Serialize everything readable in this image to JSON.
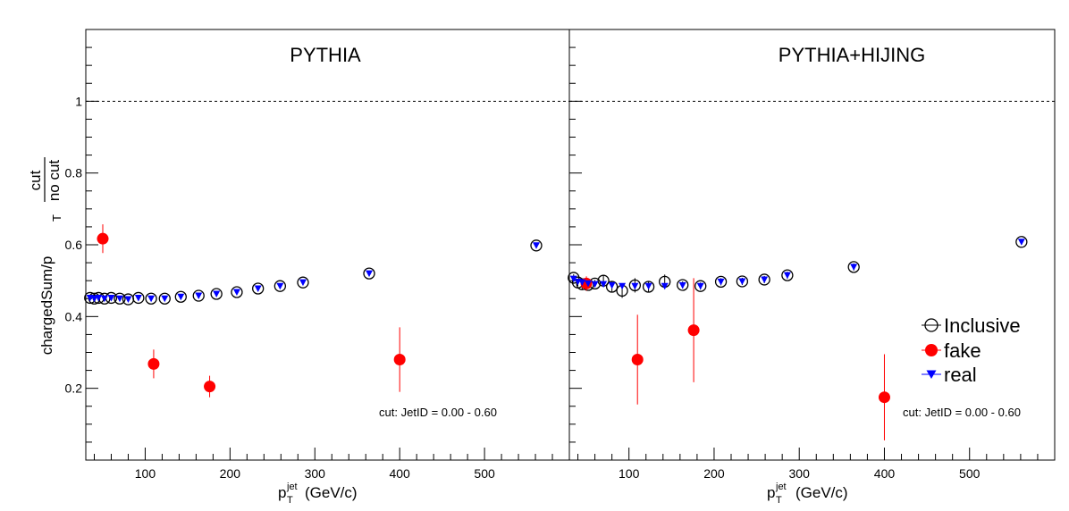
{
  "chart_data": [
    {
      "type": "scatter",
      "title": "PYTHIA",
      "annotation": "cut: JetID = 0.00 - 0.60",
      "xlabel": {
        "main": "p",
        "sub": "T",
        "sup": "jet",
        "unit": "(GeV/c)"
      },
      "ylabel": {
        "main": "chargedSum/p",
        "sub": "T",
        "frac_num": "cut",
        "frac_den": "no cut"
      },
      "xlim": [
        30,
        600
      ],
      "ylim": [
        0.0,
        1.2
      ],
      "x_ticks": [
        100,
        200,
        300,
        400,
        500
      ],
      "y_ticks": [
        0.2,
        0.4,
        0.6,
        0.8,
        1.0
      ],
      "y_tick_labels": [
        "0.2",
        "0.4",
        "0.6",
        "0.8",
        "1"
      ],
      "reference_line": 1.0,
      "series": [
        {
          "name": "Inclusive",
          "marker": "open-circle",
          "color": "#000000",
          "points": [
            [
              35,
              0.452
            ],
            [
              40,
              0.45
            ],
            [
              45,
              0.452
            ],
            [
              52,
              0.45
            ],
            [
              60,
              0.452
            ],
            [
              70,
              0.45
            ],
            [
              80,
              0.448
            ],
            [
              92,
              0.452
            ],
            [
              107,
              0.45
            ],
            [
              123,
              0.45
            ],
            [
              142,
              0.455
            ],
            [
              163,
              0.458
            ],
            [
              184,
              0.463
            ],
            [
              208,
              0.468
            ],
            [
              233,
              0.478
            ],
            [
              259,
              0.485
            ],
            [
              286,
              0.495
            ],
            [
              364,
              0.52
            ],
            [
              561,
              0.598
            ]
          ],
          "errors": [
            0,
            0,
            0,
            0,
            0,
            0,
            0,
            0,
            0,
            0,
            0,
            0,
            0,
            0,
            0,
            0,
            0,
            0,
            0
          ]
        },
        {
          "name": "fake",
          "marker": "filled-circle",
          "color": "#ff0000",
          "points": [
            [
              50,
              0.617
            ],
            [
              110,
              0.268
            ],
            [
              176,
              0.205
            ],
            [
              400,
              0.28
            ]
          ],
          "errors": [
            0.04,
            0.04,
            0.03,
            0.09
          ]
        },
        {
          "name": "real",
          "marker": "down-triangle",
          "color": "#0000ff",
          "points": [
            [
              35,
              0.452
            ],
            [
              40,
              0.45
            ],
            [
              45,
              0.452
            ],
            [
              52,
              0.45
            ],
            [
              60,
              0.452
            ],
            [
              70,
              0.45
            ],
            [
              80,
              0.448
            ],
            [
              92,
              0.452
            ],
            [
              107,
              0.45
            ],
            [
              123,
              0.45
            ],
            [
              142,
              0.455
            ],
            [
              163,
              0.458
            ],
            [
              184,
              0.463
            ],
            [
              208,
              0.468
            ],
            [
              233,
              0.478
            ],
            [
              259,
              0.485
            ],
            [
              286,
              0.495
            ],
            [
              364,
              0.52
            ],
            [
              561,
              0.598
            ]
          ],
          "errors": [
            0,
            0,
            0,
            0,
            0,
            0,
            0,
            0,
            0,
            0,
            0,
            0,
            0,
            0,
            0,
            0,
            0,
            0,
            0
          ]
        }
      ]
    },
    {
      "type": "scatter",
      "title": "PYTHIA+HIJING",
      "annotation": "cut: JetID = 0.00 - 0.60",
      "xlabel": {
        "main": "p",
        "sub": "T",
        "sup": "jet",
        "unit": "(GeV/c)"
      },
      "xlim": [
        30,
        600
      ],
      "ylim": [
        0.0,
        1.2
      ],
      "x_ticks": [
        100,
        200,
        300,
        400,
        500
      ],
      "y_ticks": [
        0.2,
        0.4,
        0.6,
        0.8,
        1.0
      ],
      "reference_line": 1.0,
      "legend": {
        "position": "bottom-right",
        "entries": [
          "Inclusive",
          "fake",
          "real"
        ]
      },
      "series": [
        {
          "name": "Inclusive",
          "marker": "open-circle",
          "color": "#000000",
          "points": [
            [
              35,
              0.508
            ],
            [
              40,
              0.495
            ],
            [
              45,
              0.49
            ],
            [
              52,
              0.488
            ],
            [
              60,
              0.492
            ],
            [
              70,
              0.5
            ],
            [
              80,
              0.483
            ],
            [
              92,
              0.472
            ],
            [
              107,
              0.487
            ],
            [
              123,
              0.483
            ],
            [
              142,
              0.497
            ],
            [
              163,
              0.488
            ],
            [
              184,
              0.485
            ],
            [
              208,
              0.497
            ],
            [
              233,
              0.498
            ],
            [
              259,
              0.503
            ],
            [
              286,
              0.515
            ],
            [
              364,
              0.538
            ],
            [
              561,
              0.608
            ]
          ],
          "errors": [
            0.01,
            0.01,
            0.015,
            0.01,
            0.01,
            0.015,
            0.015,
            0.02,
            0.02,
            0.015,
            0.02,
            0.01,
            0.01,
            0.01,
            0.01,
            0.01,
            0.01,
            0.01,
            0.008
          ]
        },
        {
          "name": "fake",
          "marker": "filled-circle",
          "color": "#ff0000",
          "points": [
            [
              50,
              0.492
            ],
            [
              110,
              0.28
            ],
            [
              176,
              0.362
            ],
            [
              400,
              0.175
            ]
          ],
          "errors": [
            0.02,
            0.125,
            0.145,
            0.12
          ]
        },
        {
          "name": "real",
          "marker": "down-triangle",
          "color": "#0000ff",
          "points": [
            [
              35,
              0.505
            ],
            [
              40,
              0.497
            ],
            [
              45,
              0.495
            ],
            [
              52,
              0.492
            ],
            [
              60,
              0.49
            ],
            [
              70,
              0.49
            ],
            [
              80,
              0.487
            ],
            [
              92,
              0.485
            ],
            [
              107,
              0.485
            ],
            [
              123,
              0.485
            ],
            [
              142,
              0.485
            ],
            [
              163,
              0.487
            ],
            [
              184,
              0.485
            ],
            [
              208,
              0.497
            ],
            [
              233,
              0.498
            ],
            [
              259,
              0.503
            ],
            [
              286,
              0.515
            ],
            [
              364,
              0.538
            ],
            [
              561,
              0.608
            ]
          ],
          "errors": [
            0,
            0,
            0,
            0,
            0,
            0,
            0,
            0,
            0,
            0,
            0,
            0,
            0,
            0,
            0,
            0,
            0,
            0,
            0
          ]
        }
      ]
    }
  ]
}
